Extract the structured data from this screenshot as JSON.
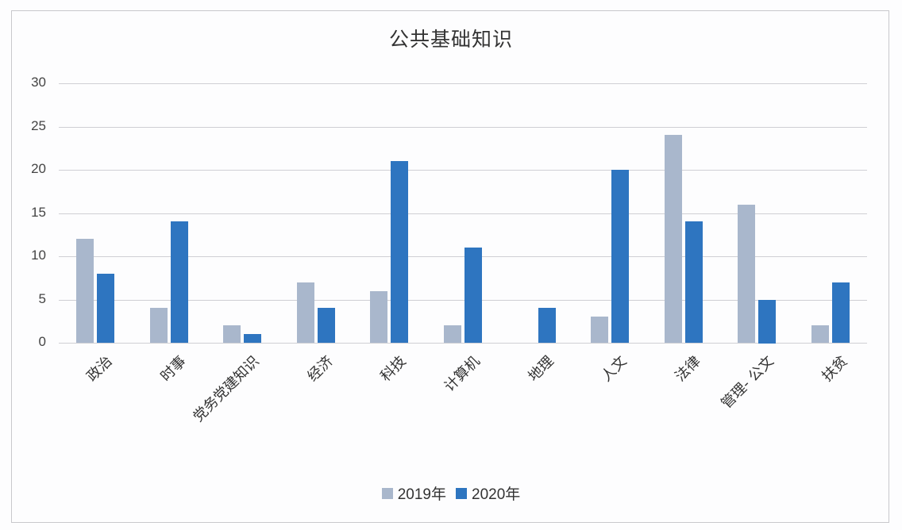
{
  "chart_data": {
    "type": "bar",
    "title": "公共基础知识",
    "xlabel": "",
    "ylabel": "",
    "ylim": [
      0,
      30
    ],
    "yticks": [
      0,
      5,
      10,
      15,
      20,
      25,
      30
    ],
    "grid": true,
    "legend_position": "bottom",
    "categories": [
      "政治",
      "时事",
      "党务党建知识",
      "经济",
      "科技",
      "计算机",
      "地理",
      "人文",
      "法律",
      "管理- 公文",
      "扶贫"
    ],
    "series": [
      {
        "name": "2019年",
        "color": "#a9b7cc",
        "values": [
          12,
          4,
          2,
          7,
          6,
          2,
          0,
          3,
          24,
          16,
          2
        ]
      },
      {
        "name": "2020年",
        "color": "#2e75c0",
        "values": [
          8,
          14,
          1,
          4,
          21,
          11,
          4,
          20,
          14,
          5,
          7
        ]
      }
    ]
  }
}
